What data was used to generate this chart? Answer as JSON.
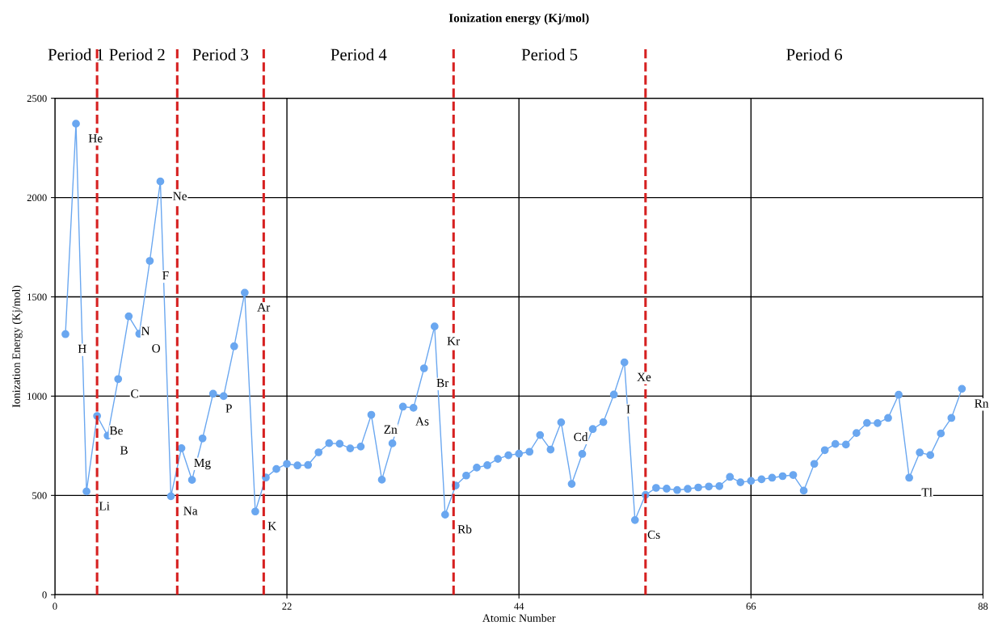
{
  "chart_data": {
    "type": "line",
    "title": "Ionization energy (Kj/mol)",
    "xlabel": "Atomic Number",
    "ylabel": "Ionization Energy (Kj/mol)",
    "x": [
      1,
      2,
      3,
      4,
      5,
      6,
      7,
      8,
      9,
      10,
      11,
      12,
      13,
      14,
      15,
      16,
      17,
      18,
      19,
      20,
      21,
      22,
      23,
      24,
      25,
      26,
      27,
      28,
      29,
      30,
      31,
      32,
      33,
      34,
      35,
      36,
      37,
      38,
      39,
      40,
      41,
      42,
      43,
      44,
      45,
      46,
      47,
      48,
      49,
      50,
      51,
      52,
      53,
      54,
      55,
      56,
      57,
      58,
      59,
      60,
      61,
      62,
      63,
      64,
      65,
      66,
      67,
      68,
      69,
      70,
      71,
      72,
      73,
      74,
      75,
      76,
      77,
      78,
      79,
      80,
      81,
      82,
      83,
      84,
      85,
      86
    ],
    "series": [
      {
        "color": "#6aa7f0",
        "values": [
          1312,
          2372,
          520,
          900,
          801,
          1086,
          1402,
          1314,
          1681,
          2081,
          496,
          738,
          578,
          787,
          1012,
          1000,
          1251,
          1521,
          419,
          590,
          633,
          659,
          651,
          653,
          717,
          763,
          760,
          737,
          746,
          906,
          579,
          762,
          947,
          941,
          1140,
          1351,
          403,
          550,
          600,
          640,
          652,
          684,
          702,
          710,
          720,
          804,
          731,
          868,
          558,
          709,
          834,
          869,
          1008,
          1170,
          376,
          503,
          538,
          534,
          527,
          533,
          540,
          545,
          547,
          593,
          566,
          573,
          581,
          589,
          597,
          603,
          524,
          659,
          728,
          759,
          756,
          814,
          865,
          864,
          890,
          1007,
          589,
          716,
          703,
          812,
          890,
          1037
        ]
      }
    ],
    "marker": "circle",
    "line_style": "solid",
    "xlim": [
      0,
      88
    ],
    "xticks": [
      0,
      22,
      44,
      66,
      88
    ],
    "ylim": [
      0,
      2500
    ],
    "yticks": [
      0,
      500,
      1000,
      1500,
      2000,
      2500
    ],
    "grid": true,
    "legend": false,
    "ref_lines": [
      {
        "axis": "x",
        "value": 4,
        "color": "#d62020",
        "line_style": "dashed"
      },
      {
        "axis": "x",
        "value": 11.6,
        "color": "#d62020",
        "line_style": "dashed"
      },
      {
        "axis": "x",
        "value": 19.8,
        "color": "#d62020",
        "line_style": "dashed"
      },
      {
        "axis": "x",
        "value": 37.8,
        "color": "#d62020",
        "line_style": "dashed"
      },
      {
        "axis": "x",
        "value": 56,
        "color": "#d62020",
        "line_style": "dashed"
      }
    ],
    "annotations": [
      "Period 1",
      "Period 2",
      "Period 3",
      "Period 4",
      "Period 5",
      "Period 6",
      {
        "text": "H",
        "x": 1,
        "y": 1312
      },
      {
        "text": "He",
        "x": 2,
        "y": 2372
      },
      {
        "text": "Li",
        "x": 3,
        "y": 520
      },
      {
        "text": "Be",
        "x": 4,
        "y": 900
      },
      {
        "text": "B",
        "x": 5,
        "y": 801
      },
      {
        "text": "C",
        "x": 6,
        "y": 1086
      },
      {
        "text": "N",
        "x": 7,
        "y": 1402
      },
      {
        "text": "O",
        "x": 8,
        "y": 1314
      },
      {
        "text": "F",
        "x": 9,
        "y": 1681
      },
      {
        "text": "Ne",
        "x": 10,
        "y": 2081
      },
      {
        "text": "Na",
        "x": 11,
        "y": 496
      },
      {
        "text": "Mg",
        "x": 12,
        "y": 738
      },
      {
        "text": "P",
        "x": 15,
        "y": 1012
      },
      {
        "text": "Ar",
        "x": 18,
        "y": 1521
      },
      {
        "text": "K",
        "x": 19,
        "y": 419
      },
      {
        "text": "Zn",
        "x": 30,
        "y": 906
      },
      {
        "text": "As",
        "x": 33,
        "y": 947
      },
      {
        "text": "Br",
        "x": 35,
        "y": 1140
      },
      {
        "text": "Kr",
        "x": 36,
        "y": 1351
      },
      {
        "text": "Rb",
        "x": 37,
        "y": 403
      },
      {
        "text": "Cd",
        "x": 48,
        "y": 868
      },
      {
        "text": "I",
        "x": 53,
        "y": 1008
      },
      {
        "text": "Xe",
        "x": 54,
        "y": 1170
      },
      {
        "text": "Cs",
        "x": 55,
        "y": 376
      },
      {
        "text": "Tl",
        "x": 81,
        "y": 589
      },
      {
        "text": "Rn",
        "x": 86,
        "y": 1037
      }
    ]
  }
}
